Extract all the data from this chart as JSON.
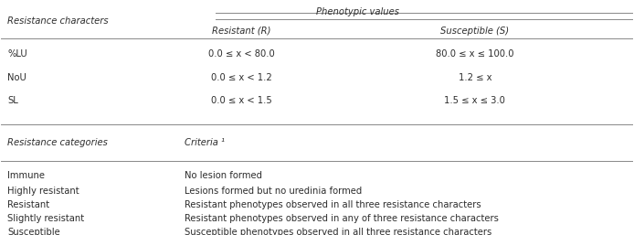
{
  "fig_width": 6.94,
  "fig_height": 2.57,
  "dpi": 100,
  "background_color": "#ffffff",
  "text_color": "#2d2d2d",
  "font_size": 7.2,
  "header_font_size": 7.2,
  "top_section": {
    "col_header_row": {
      "col0": "",
      "span_label": "Phenotypic values",
      "col1": "Resistant (R)",
      "col2": "Susceptible (S)"
    },
    "row_header": "Resistance characters",
    "rows": [
      {
        "%LU": [
          "0.0 ≤ x < 80.0",
          "80.0 ≤ x ≤ 100.0"
        ]
      },
      {
        "NoU": [
          "0.0 ≤ x < 1.2",
          "1.2 ≤ x"
        ]
      },
      {
        "SL": [
          "0.0 ≤ x < 1.5",
          "1.5 ≤ x ≤ 3.0"
        ]
      }
    ]
  },
  "bottom_section": {
    "col0_header": "Resistance categories",
    "col1_header": "Criteria ¹",
    "rows": [
      [
        "Immune",
        "No lesion formed"
      ],
      [
        "Highly resistant",
        "Lesions formed but no uredinia formed"
      ],
      [
        "Resistant",
        "Resistant phenotypes observed in all three resistance characters"
      ],
      [
        "Slightly resistant",
        "Resistant phenotypes observed in any of three resistance characters"
      ],
      [
        "Susceptible",
        "Susceptible phenotypes observed in all three resistance characters"
      ]
    ]
  }
}
